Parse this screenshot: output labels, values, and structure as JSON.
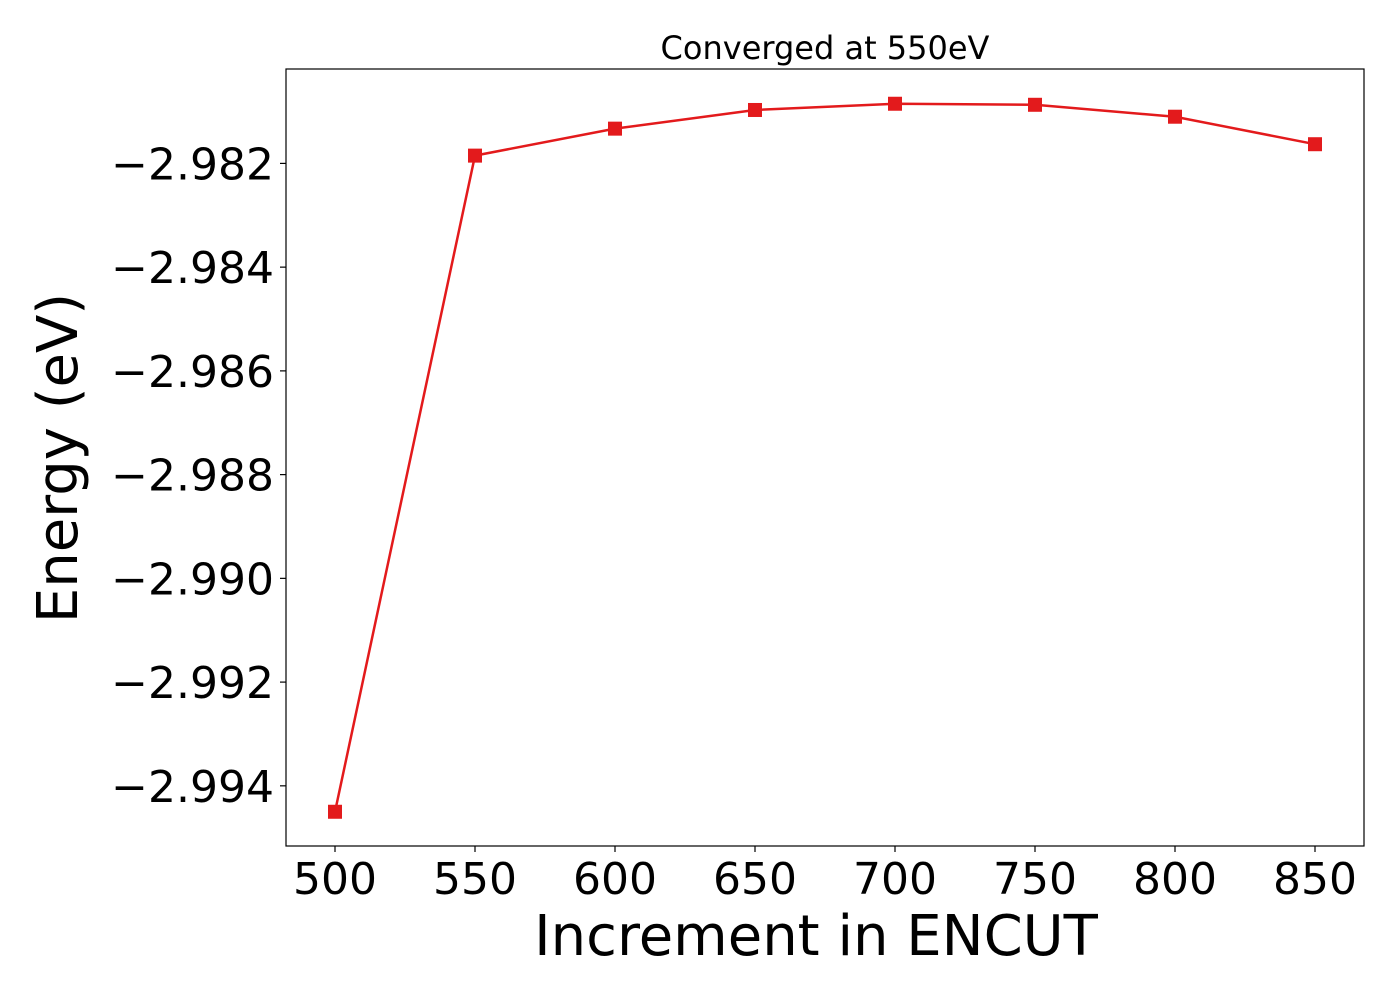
{
  "chart_data": {
    "type": "line",
    "title": "Converged at 550eV",
    "xlabel": "Increment in ENCUT",
    "ylabel": "Energy (eV)",
    "x": [
      500,
      550,
      600,
      650,
      700,
      750,
      800,
      850
    ],
    "series": [
      {
        "values": [
          -2.9945,
          -2.98185,
          -2.98133,
          -2.98097,
          -2.98085,
          -2.98087,
          -2.9811,
          -2.98163
        ],
        "color": "#e31a1c",
        "marker": "square"
      }
    ],
    "xticks": [
      500,
      550,
      600,
      650,
      700,
      750,
      800,
      850
    ],
    "xtick_labels": [
      "500",
      "550",
      "600",
      "650",
      "700",
      "750",
      "800",
      "850"
    ],
    "yticks": [
      -2.994,
      -2.992,
      -2.99,
      -2.988,
      -2.986,
      -2.984,
      -2.982
    ],
    "ytick_labels": [
      "−2.994",
      "−2.992",
      "−2.990",
      "−2.988",
      "−2.986",
      "−2.984",
      "−2.982"
    ],
    "xlim": [
      482.5,
      867.5
    ],
    "ylim": [
      -2.99516,
      -2.98018
    ],
    "grid": false,
    "legend": false
  }
}
